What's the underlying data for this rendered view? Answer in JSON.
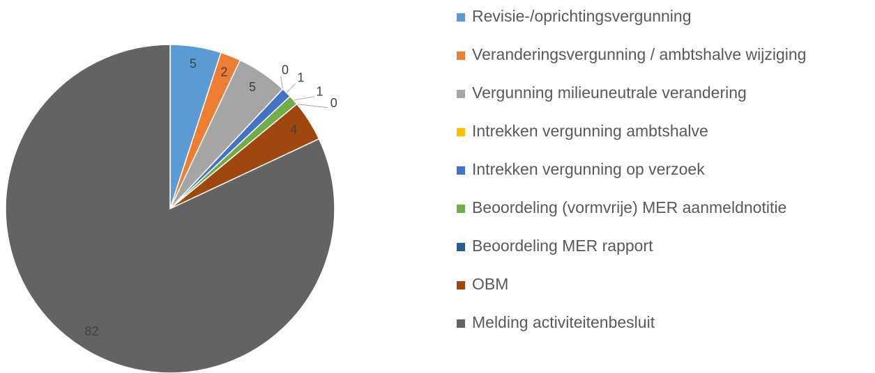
{
  "chart_data": {
    "type": "pie",
    "categories": [
      "Revisie-/oprichtingsvergunning",
      "Veranderingsvergunning / ambtshalve wijziging",
      "Vergunning milieuneutrale verandering",
      "Intrekken vergunning ambtshalve",
      "Intrekken vergunning op verzoek",
      "Beoordeling (vormvrije) MER aanmeldnotitie",
      "Beoordeling MER rapport",
      "OBM",
      "Melding activiteitenbesluit"
    ],
    "values": [
      5,
      2,
      5,
      0,
      1,
      1,
      0,
      4,
      82
    ],
    "colors": [
      "#5b9bd5",
      "#ed7d31",
      "#a5a5a5",
      "#ffc000",
      "#4472c4",
      "#70ad47",
      "#255e91",
      "#9e480e",
      "#636363"
    ],
    "legend": "right"
  }
}
